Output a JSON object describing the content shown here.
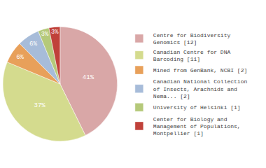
{
  "chart_data": {
    "type": "pie",
    "categories": [
      "Centre for Biodiversity\nGenomics [12]",
      "Canadian Centre for DNA\nBarcoding [11]",
      "Mined from GenBank, NCBI [2]",
      "Canadian National Collection\nof Insects, Arachnids and\nNema... [2]",
      "University of Helsinki [1]",
      "Center for Biology and\nManagement of Populations,\nMontpellier [1]"
    ],
    "values": [
      41,
      37,
      6,
      6,
      3,
      3
    ],
    "value_labels": [
      "41%",
      "37%",
      "6%",
      "6%",
      "3%",
      "3%"
    ],
    "colors": [
      "#d9a7a7",
      "#d4db8e",
      "#e8a05a",
      "#a7bcd9",
      "#b5c97a",
      "#c0413a"
    ],
    "data_labels": true,
    "legend": "right"
  }
}
